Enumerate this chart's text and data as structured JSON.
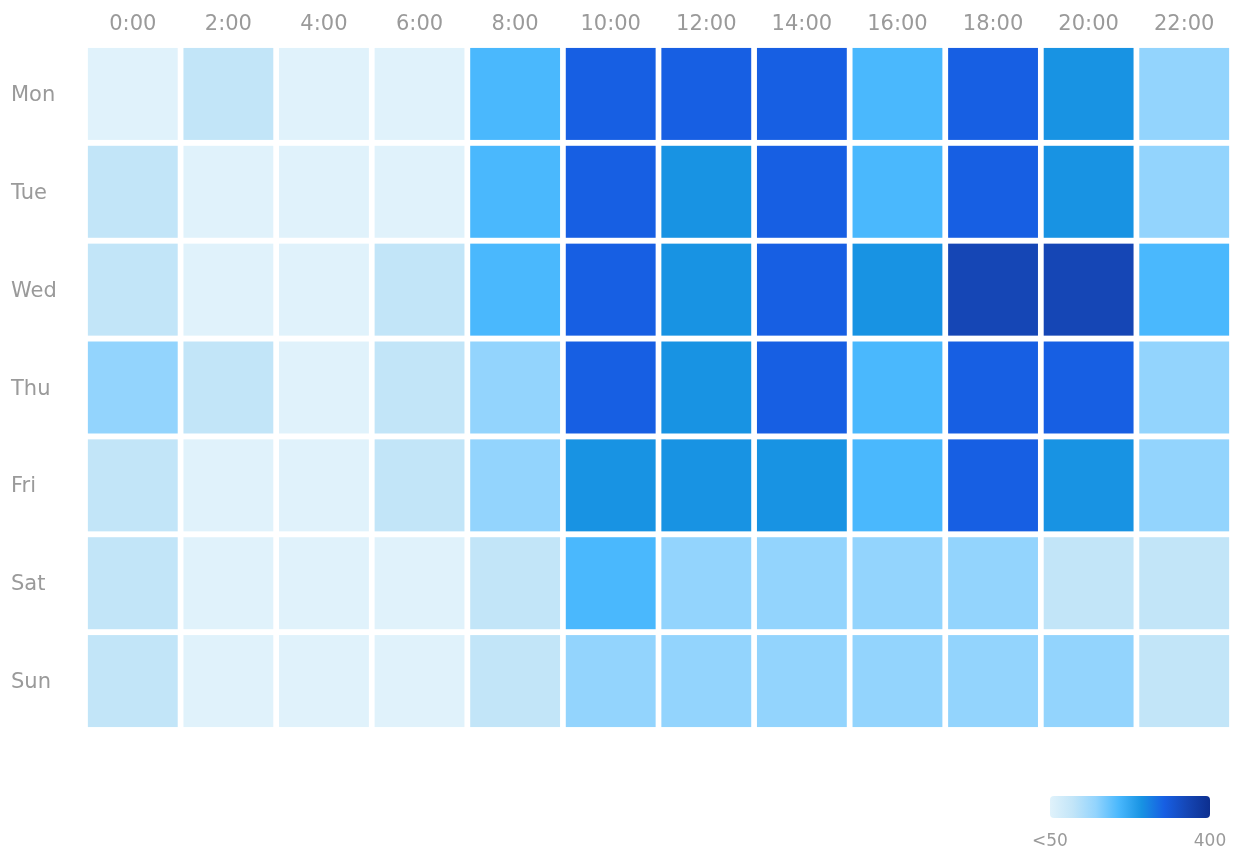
{
  "chart_data": {
    "type": "heatmap",
    "categories": [
      "0:00",
      "2:00",
      "4:00",
      "6:00",
      "8:00",
      "10:00",
      "12:00",
      "14:00",
      "16:00",
      "18:00",
      "20:00",
      "22:00"
    ],
    "y_categories": [
      "Mon",
      "Tue",
      "Wed",
      "Thu",
      "Fri",
      "Sat",
      "Sun"
    ],
    "cells": [
      [
        50,
        100,
        50,
        50,
        200,
        300,
        300,
        300,
        200,
        300,
        250,
        150
      ],
      [
        100,
        50,
        50,
        50,
        200,
        300,
        250,
        300,
        200,
        300,
        250,
        150
      ],
      [
        100,
        50,
        50,
        100,
        200,
        300,
        250,
        300,
        250,
        350,
        350,
        200
      ],
      [
        150,
        100,
        50,
        100,
        150,
        300,
        250,
        300,
        200,
        300,
        300,
        150
      ],
      [
        100,
        50,
        50,
        100,
        150,
        250,
        250,
        250,
        200,
        300,
        250,
        150
      ],
      [
        100,
        50,
        50,
        50,
        100,
        200,
        150,
        150,
        150,
        150,
        100,
        100
      ],
      [
        100,
        50,
        50,
        50,
        100,
        150,
        150,
        150,
        150,
        150,
        150,
        100
      ]
    ],
    "clim": [
      50,
      400
    ],
    "cticks": [
      {
        "value": 50,
        "label": "<50"
      },
      400
    ]
  }
}
